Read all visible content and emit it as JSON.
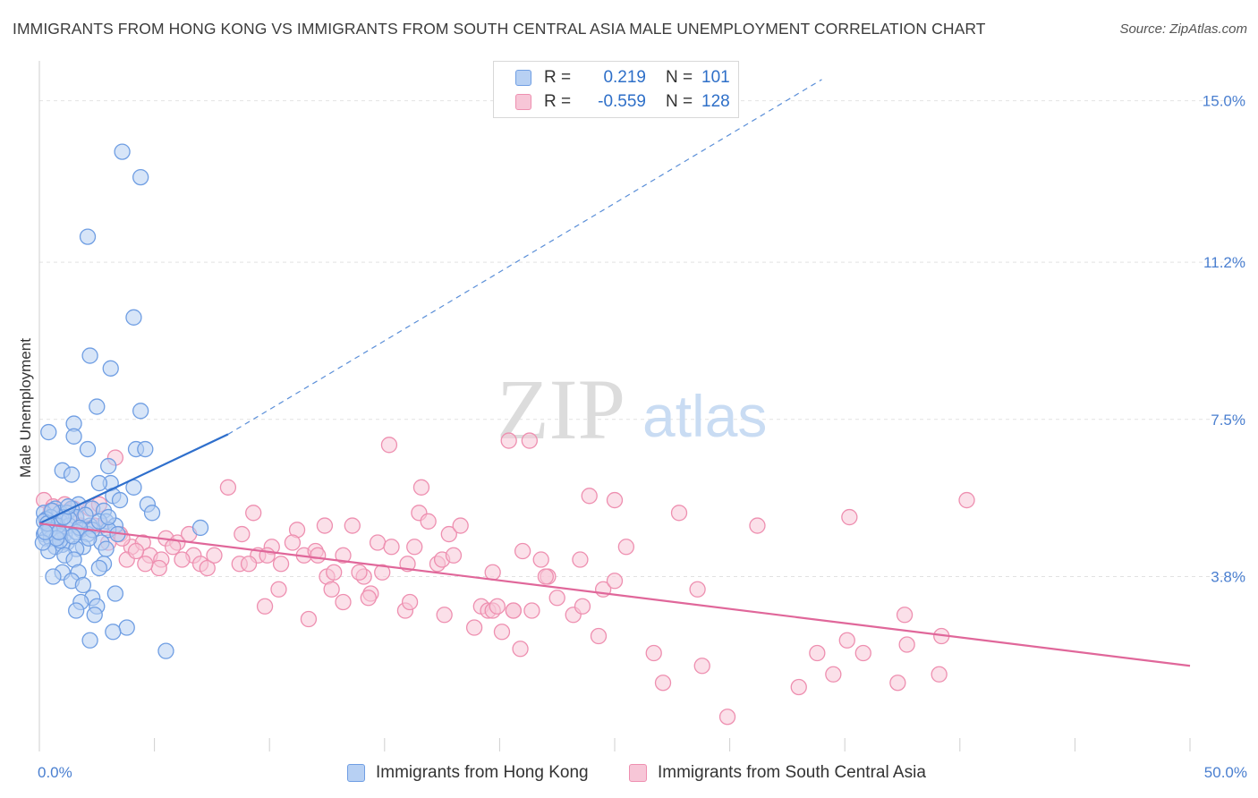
{
  "title": "IMMIGRANTS FROM HONG KONG VS IMMIGRANTS FROM SOUTH CENTRAL ASIA MALE UNEMPLOYMENT CORRELATION CHART",
  "source": "Source: ZipAtlas.com",
  "watermark": {
    "zip": "ZIP",
    "atlas": "atlas"
  },
  "legend": {
    "rows": [
      {
        "r_label": "R =",
        "r_value": "0.219",
        "n_label": "N =",
        "n_value": "101",
        "color": "#6f9ee3",
        "fill": "#b7d0f3"
      },
      {
        "r_label": "R =",
        "r_value": "-0.559",
        "n_label": "N =",
        "n_value": "128",
        "color": "#ee8fb0",
        "fill": "#f7c6d7"
      }
    ]
  },
  "bottom_legend": [
    {
      "label": "Immigrants from Hong Kong",
      "color": "#6f9ee3",
      "fill": "#b7d0f3"
    },
    {
      "label": "Immigrants from South Central Asia",
      "color": "#ee8fb0",
      "fill": "#f7c6d7"
    }
  ],
  "chart_data": {
    "type": "scatter",
    "title": "IMMIGRANTS FROM HONG KONG VS IMMIGRANTS FROM SOUTH CENTRAL ASIA MALE UNEMPLOYMENT CORRELATION CHART",
    "xlabel": "",
    "ylabel": "Male Unemployment",
    "xlim": [
      0,
      50
    ],
    "ylim": [
      0,
      15.75
    ],
    "x_tick_labels": [
      "0.0%",
      "50.0%"
    ],
    "y_ticks": [
      3.8,
      7.5,
      11.2,
      15.0
    ],
    "y_tick_labels": [
      "3.8%",
      "7.5%",
      "11.2%",
      "15.0%"
    ],
    "grid": true,
    "legend_position": "top-center",
    "series": [
      {
        "name": "Immigrants from Hong Kong",
        "color": "#6f9ee3",
        "fill": "#b7d0f3",
        "trend": {
          "x": [
            0,
            8.2
          ],
          "y": [
            5.05,
            7.15
          ],
          "style": "solid",
          "extended_to_x": 34.0,
          "extended_y": 15.5
        },
        "points": [
          [
            3.6,
            13.8
          ],
          [
            4.4,
            13.2
          ],
          [
            2.1,
            11.8
          ],
          [
            4.1,
            9.9
          ],
          [
            2.2,
            9.0
          ],
          [
            3.1,
            8.7
          ],
          [
            2.5,
            7.8
          ],
          [
            4.4,
            7.7
          ],
          [
            1.5,
            7.4
          ],
          [
            0.4,
            7.2
          ],
          [
            1.5,
            7.1
          ],
          [
            2.1,
            6.8
          ],
          [
            4.2,
            6.8
          ],
          [
            4.6,
            6.8
          ],
          [
            3.0,
            6.4
          ],
          [
            1.0,
            6.3
          ],
          [
            1.4,
            6.2
          ],
          [
            3.1,
            6.0
          ],
          [
            2.6,
            6.0
          ],
          [
            4.1,
            5.9
          ],
          [
            3.2,
            5.7
          ],
          [
            3.5,
            5.6
          ],
          [
            1.7,
            5.5
          ],
          [
            4.7,
            5.5
          ],
          [
            2.3,
            5.4
          ],
          [
            0.7,
            5.4
          ],
          [
            1.4,
            5.4
          ],
          [
            2.8,
            5.35
          ],
          [
            0.2,
            5.3
          ],
          [
            0.9,
            5.3
          ],
          [
            1.2,
            5.3
          ],
          [
            4.9,
            5.3
          ],
          [
            0.5,
            5.2
          ],
          [
            1.6,
            5.2
          ],
          [
            0.3,
            5.15
          ],
          [
            2.9,
            5.1
          ],
          [
            0.9,
            5.1
          ],
          [
            0.6,
            5.05
          ],
          [
            3.3,
            5.0
          ],
          [
            2.2,
            5.0
          ],
          [
            1.3,
            5.0
          ],
          [
            7.0,
            4.95
          ],
          [
            0.4,
            4.95
          ],
          [
            3.0,
            4.9
          ],
          [
            1.8,
            4.9
          ],
          [
            0.6,
            4.85
          ],
          [
            0.2,
            4.8
          ],
          [
            1.1,
            4.8
          ],
          [
            2.1,
            4.8
          ],
          [
            0.9,
            4.75
          ],
          [
            0.3,
            4.7
          ],
          [
            0.5,
            4.7
          ],
          [
            1.2,
            4.6
          ],
          [
            2.7,
            4.6
          ],
          [
            1.0,
            4.55
          ],
          [
            0.7,
            4.5
          ],
          [
            1.9,
            4.5
          ],
          [
            1.6,
            4.45
          ],
          [
            2.9,
            4.45
          ],
          [
            0.4,
            4.4
          ],
          [
            1.1,
            4.3
          ],
          [
            1.5,
            4.2
          ],
          [
            2.8,
            4.1
          ],
          [
            2.6,
            4.0
          ],
          [
            1.0,
            3.9
          ],
          [
            1.7,
            3.9
          ],
          [
            0.6,
            3.8
          ],
          [
            1.4,
            3.7
          ],
          [
            1.9,
            3.6
          ],
          [
            3.3,
            3.4
          ],
          [
            2.3,
            3.3
          ],
          [
            1.8,
            3.2
          ],
          [
            2.5,
            3.1
          ],
          [
            1.6,
            3.0
          ],
          [
            2.4,
            2.9
          ],
          [
            3.8,
            2.6
          ],
          [
            3.2,
            2.5
          ],
          [
            2.2,
            2.3
          ],
          [
            5.5,
            2.05
          ],
          [
            0.8,
            5.0
          ],
          [
            1.6,
            4.85
          ],
          [
            2.3,
            4.9
          ],
          [
            0.2,
            5.1
          ],
          [
            0.9,
            4.65
          ],
          [
            1.3,
            5.15
          ],
          [
            2.0,
            5.25
          ],
          [
            0.45,
            4.9
          ],
          [
            1.05,
            5.2
          ],
          [
            0.75,
            4.7
          ],
          [
            2.6,
            5.1
          ],
          [
            3.4,
            4.8
          ],
          [
            0.15,
            4.6
          ],
          [
            1.75,
            4.95
          ],
          [
            0.35,
            5.05
          ],
          [
            1.45,
            4.75
          ],
          [
            0.55,
            5.35
          ],
          [
            2.15,
            4.7
          ],
          [
            0.85,
            4.85
          ],
          [
            1.25,
            5.45
          ],
          [
            3.0,
            5.2
          ],
          [
            0.25,
            4.85
          ]
        ]
      },
      {
        "name": "Immigrants from South Central Asia",
        "color": "#ee8fb0",
        "fill": "#f7c6d7",
        "trend": {
          "x": [
            0,
            50
          ],
          "y": [
            5.05,
            1.7
          ],
          "style": "solid"
        },
        "points": [
          [
            0.2,
            5.6
          ],
          [
            0.6,
            5.45
          ],
          [
            1.1,
            5.5
          ],
          [
            0.9,
            5.3
          ],
          [
            1.6,
            5.2
          ],
          [
            2.2,
            5.4
          ],
          [
            0.4,
            5.2
          ],
          [
            1.8,
            5.0
          ],
          [
            0.8,
            4.9
          ],
          [
            2.7,
            5.0
          ],
          [
            3.3,
            6.6
          ],
          [
            2.6,
            5.5
          ],
          [
            3.0,
            4.6
          ],
          [
            3.5,
            4.8
          ],
          [
            4.0,
            4.5
          ],
          [
            3.8,
            4.2
          ],
          [
            4.5,
            4.6
          ],
          [
            4.8,
            4.3
          ],
          [
            5.3,
            4.2
          ],
          [
            5.5,
            4.7
          ],
          [
            5.2,
            4.0
          ],
          [
            6.0,
            4.6
          ],
          [
            6.5,
            4.8
          ],
          [
            6.7,
            4.3
          ],
          [
            7.0,
            4.1
          ],
          [
            7.3,
            4.0
          ],
          [
            8.2,
            5.9
          ],
          [
            8.7,
            4.1
          ],
          [
            8.8,
            4.8
          ],
          [
            9.3,
            5.3
          ],
          [
            9.5,
            4.3
          ],
          [
            9.1,
            4.1
          ],
          [
            10.1,
            4.5
          ],
          [
            9.9,
            4.3
          ],
          [
            10.5,
            4.1
          ],
          [
            10.4,
            3.5
          ],
          [
            11.2,
            4.9
          ],
          [
            11.0,
            4.6
          ],
          [
            11.5,
            4.3
          ],
          [
            12.0,
            4.4
          ],
          [
            12.1,
            4.3
          ],
          [
            12.4,
            5.0
          ],
          [
            12.5,
            3.8
          ],
          [
            12.7,
            3.5
          ],
          [
            12.8,
            3.9
          ],
          [
            13.2,
            3.2
          ],
          [
            13.2,
            4.3
          ],
          [
            13.6,
            5.0
          ],
          [
            14.1,
            3.8
          ],
          [
            14.4,
            3.4
          ],
          [
            14.7,
            4.6
          ],
          [
            14.9,
            3.9
          ],
          [
            15.3,
            4.5
          ],
          [
            15.2,
            6.9
          ],
          [
            15.9,
            3.0
          ],
          [
            16.1,
            3.2
          ],
          [
            16.0,
            4.1
          ],
          [
            16.3,
            4.5
          ],
          [
            16.5,
            5.3
          ],
          [
            16.6,
            5.9
          ],
          [
            16.9,
            5.1
          ],
          [
            17.3,
            4.1
          ],
          [
            17.5,
            4.2
          ],
          [
            17.6,
            2.9
          ],
          [
            18.0,
            4.3
          ],
          [
            17.8,
            4.8
          ],
          [
            18.3,
            5.0
          ],
          [
            18.9,
            2.6
          ],
          [
            19.2,
            3.1
          ],
          [
            19.5,
            3.0
          ],
          [
            19.7,
            3.9
          ],
          [
            19.7,
            3.0
          ],
          [
            19.9,
            3.1
          ],
          [
            20.1,
            2.5
          ],
          [
            20.6,
            3.0
          ],
          [
            20.6,
            3.0
          ],
          [
            20.4,
            7.0
          ],
          [
            21.3,
            7.0
          ],
          [
            20.9,
            2.1
          ],
          [
            21.0,
            4.4
          ],
          [
            21.8,
            4.2
          ],
          [
            22.1,
            3.8
          ],
          [
            22.0,
            3.8
          ],
          [
            21.4,
            3.0
          ],
          [
            22.5,
            3.3
          ],
          [
            23.2,
            2.9
          ],
          [
            23.6,
            3.1
          ],
          [
            23.5,
            4.2
          ],
          [
            23.9,
            5.7
          ],
          [
            24.3,
            2.4
          ],
          [
            24.5,
            3.5
          ],
          [
            25.0,
            3.7
          ],
          [
            25.0,
            5.6
          ],
          [
            25.5,
            4.5
          ],
          [
            26.7,
            2.0
          ],
          [
            27.1,
            1.3
          ],
          [
            27.8,
            5.3
          ],
          [
            28.6,
            3.5
          ],
          [
            28.8,
            1.7
          ],
          [
            29.9,
            0.5
          ],
          [
            31.2,
            5.0
          ],
          [
            33.0,
            1.2
          ],
          [
            33.8,
            2.0
          ],
          [
            34.5,
            1.5
          ],
          [
            35.1,
            2.3
          ],
          [
            35.2,
            5.2
          ],
          [
            35.8,
            2.0
          ],
          [
            37.3,
            1.3
          ],
          [
            37.7,
            2.2
          ],
          [
            37.6,
            2.9
          ],
          [
            39.1,
            1.5
          ],
          [
            39.2,
            2.4
          ],
          [
            40.3,
            5.6
          ],
          [
            1.3,
            5.35
          ],
          [
            2.0,
            4.95
          ],
          [
            0.5,
            5.35
          ],
          [
            1.5,
            5.4
          ],
          [
            2.4,
            5.0
          ],
          [
            3.6,
            4.7
          ],
          [
            4.2,
            4.4
          ],
          [
            4.6,
            4.1
          ],
          [
            5.8,
            4.5
          ],
          [
            6.2,
            4.2
          ],
          [
            7.6,
            4.3
          ],
          [
            9.8,
            3.1
          ],
          [
            11.7,
            2.8
          ],
          [
            13.9,
            3.9
          ],
          [
            14.3,
            3.3
          ]
        ]
      }
    ]
  }
}
